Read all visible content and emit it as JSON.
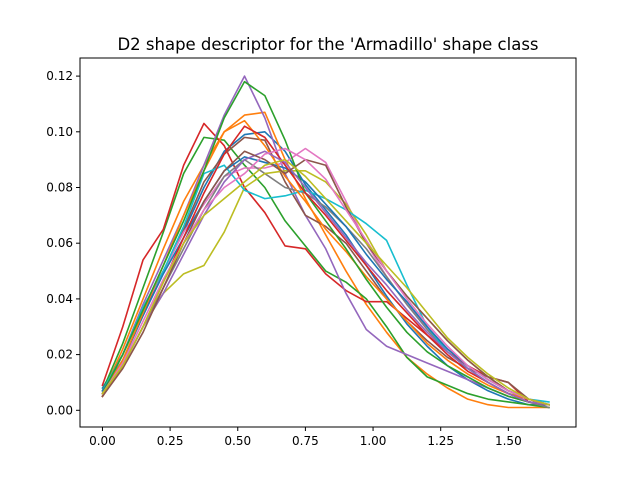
{
  "chart_data": {
    "type": "line",
    "title": "D2 shape descriptor for the 'Armadillo' shape class",
    "xlabel": "",
    "ylabel": "",
    "xlim": [
      -0.083,
      1.75
    ],
    "ylim": [
      -0.006,
      0.1265
    ],
    "x_ticks": [
      0.0,
      0.25,
      0.5,
      0.75,
      1.0,
      1.25,
      1.5
    ],
    "x_tick_labels": [
      "0.00",
      "0.25",
      "0.50",
      "0.75",
      "1.00",
      "1.25",
      "1.50"
    ],
    "y_ticks": [
      0.0,
      0.02,
      0.04,
      0.06,
      0.08,
      0.1,
      0.12
    ],
    "y_tick_labels": [
      "0.00",
      "0.02",
      "0.04",
      "0.06",
      "0.08",
      "0.10",
      "0.12"
    ],
    "grid": false,
    "legend": "none",
    "x": [
      0.0,
      0.075,
      0.15,
      0.225,
      0.3,
      0.375,
      0.45,
      0.525,
      0.6,
      0.675,
      0.75,
      0.825,
      0.9,
      0.975,
      1.05,
      1.125,
      1.2,
      1.275,
      1.35,
      1.425,
      1.5,
      1.575,
      1.65
    ],
    "series": [
      {
        "color": "#1f77b4",
        "values": [
          0.008,
          0.02,
          0.036,
          0.05,
          0.064,
          0.08,
          0.093,
          0.099,
          0.1,
          0.093,
          0.081,
          0.072,
          0.063,
          0.052,
          0.041,
          0.031,
          0.023,
          0.016,
          0.011,
          0.007,
          0.004,
          0.002,
          0.002
        ]
      },
      {
        "color": "#ff7f0e",
        "values": [
          0.006,
          0.022,
          0.04,
          0.058,
          0.075,
          0.088,
          0.1,
          0.106,
          0.107,
          0.09,
          0.076,
          0.063,
          0.05,
          0.038,
          0.028,
          0.019,
          0.013,
          0.008,
          0.004,
          0.002,
          0.001,
          0.001,
          0.001
        ]
      },
      {
        "color": "#2ca02c",
        "values": [
          0.007,
          0.024,
          0.044,
          0.064,
          0.085,
          0.098,
          0.097,
          0.088,
          0.08,
          0.068,
          0.059,
          0.05,
          0.046,
          0.04,
          0.03,
          0.019,
          0.012,
          0.009,
          0.006,
          0.004,
          0.003,
          0.002,
          0.001
        ]
      },
      {
        "color": "#d62728",
        "values": [
          0.009,
          0.03,
          0.054,
          0.065,
          0.088,
          0.103,
          0.095,
          0.08,
          0.071,
          0.059,
          0.058,
          0.049,
          0.043,
          0.039,
          0.039,
          0.033,
          0.027,
          0.021,
          0.016,
          0.012,
          0.01,
          0.003,
          0.002
        ]
      },
      {
        "color": "#9467bd",
        "values": [
          0.006,
          0.02,
          0.038,
          0.054,
          0.07,
          0.088,
          0.106,
          0.12,
          0.105,
          0.085,
          0.07,
          0.058,
          0.042,
          0.029,
          0.023,
          0.02,
          0.017,
          0.014,
          0.011,
          0.008,
          0.005,
          0.003,
          0.002
        ]
      },
      {
        "color": "#8c564b",
        "values": [
          0.006,
          0.018,
          0.034,
          0.05,
          0.065,
          0.082,
          0.092,
          0.098,
          0.097,
          0.082,
          0.07,
          0.066,
          0.06,
          0.05,
          0.04,
          0.032,
          0.025,
          0.019,
          0.015,
          0.012,
          0.01,
          0.004,
          0.002
        ]
      },
      {
        "color": "#e377c2",
        "values": [
          0.006,
          0.02,
          0.036,
          0.05,
          0.064,
          0.074,
          0.084,
          0.087,
          0.087,
          0.089,
          0.094,
          0.089,
          0.075,
          0.06,
          0.048,
          0.038,
          0.03,
          0.022,
          0.016,
          0.011,
          0.007,
          0.004,
          0.002
        ]
      },
      {
        "color": "#7f7f7f",
        "values": [
          0.005,
          0.016,
          0.03,
          0.044,
          0.058,
          0.072,
          0.084,
          0.09,
          0.085,
          0.08,
          0.078,
          0.073,
          0.066,
          0.058,
          0.048,
          0.038,
          0.029,
          0.021,
          0.015,
          0.01,
          0.006,
          0.003,
          0.001
        ]
      },
      {
        "color": "#bcbd22",
        "values": [
          0.005,
          0.016,
          0.03,
          0.042,
          0.049,
          0.052,
          0.064,
          0.08,
          0.085,
          0.086,
          0.086,
          0.082,
          0.074,
          0.063,
          0.05,
          0.041,
          0.033,
          0.025,
          0.018,
          0.012,
          0.007,
          0.004,
          0.002
        ]
      },
      {
        "color": "#17becf",
        "values": [
          0.007,
          0.02,
          0.037,
          0.05,
          0.066,
          0.085,
          0.088,
          0.079,
          0.076,
          0.077,
          0.079,
          0.076,
          0.072,
          0.067,
          0.061,
          0.045,
          0.03,
          0.021,
          0.015,
          0.01,
          0.006,
          0.004,
          0.003
        ]
      },
      {
        "color": "#1f77b4",
        "values": [
          0.007,
          0.018,
          0.034,
          0.049,
          0.062,
          0.075,
          0.086,
          0.091,
          0.089,
          0.087,
          0.082,
          0.074,
          0.066,
          0.056,
          0.047,
          0.039,
          0.03,
          0.022,
          0.016,
          0.011,
          0.007,
          0.004,
          0.002
        ]
      },
      {
        "color": "#ff7f0e",
        "values": [
          0.006,
          0.018,
          0.035,
          0.052,
          0.07,
          0.086,
          0.1,
          0.104,
          0.095,
          0.084,
          0.075,
          0.065,
          0.057,
          0.048,
          0.04,
          0.032,
          0.024,
          0.018,
          0.013,
          0.009,
          0.006,
          0.004,
          0.002
        ]
      },
      {
        "color": "#2ca02c",
        "values": [
          0.006,
          0.02,
          0.036,
          0.052,
          0.068,
          0.086,
          0.105,
          0.118,
          0.113,
          0.097,
          0.078,
          0.068,
          0.058,
          0.047,
          0.037,
          0.028,
          0.021,
          0.016,
          0.012,
          0.008,
          0.005,
          0.003,
          0.002
        ]
      },
      {
        "color": "#d62728",
        "values": [
          0.005,
          0.016,
          0.03,
          0.046,
          0.062,
          0.078,
          0.092,
          0.102,
          0.098,
          0.088,
          0.078,
          0.07,
          0.061,
          0.052,
          0.043,
          0.035,
          0.027,
          0.02,
          0.014,
          0.01,
          0.006,
          0.003,
          0.002
        ]
      },
      {
        "color": "#9467bd",
        "values": [
          0.006,
          0.016,
          0.03,
          0.042,
          0.056,
          0.07,
          0.082,
          0.09,
          0.093,
          0.089,
          0.08,
          0.071,
          0.062,
          0.053,
          0.045,
          0.036,
          0.028,
          0.021,
          0.015,
          0.01,
          0.006,
          0.003,
          0.002
        ]
      },
      {
        "color": "#8c564b",
        "values": [
          0.005,
          0.015,
          0.028,
          0.044,
          0.06,
          0.075,
          0.086,
          0.093,
          0.09,
          0.085,
          0.09,
          0.088,
          0.073,
          0.06,
          0.05,
          0.041,
          0.033,
          0.025,
          0.018,
          0.012,
          0.007,
          0.004,
          0.002
        ]
      },
      {
        "color": "#e377c2",
        "values": [
          0.006,
          0.017,
          0.032,
          0.047,
          0.06,
          0.072,
          0.08,
          0.085,
          0.092,
          0.094,
          0.09,
          0.083,
          0.072,
          0.061,
          0.05,
          0.04,
          0.031,
          0.023,
          0.016,
          0.011,
          0.007,
          0.004,
          0.002
        ]
      },
      {
        "color": "#bcbd22",
        "values": [
          0.006,
          0.016,
          0.03,
          0.046,
          0.06,
          0.07,
          0.076,
          0.082,
          0.088,
          0.09,
          0.084,
          0.076,
          0.068,
          0.06,
          0.052,
          0.044,
          0.035,
          0.026,
          0.019,
          0.013,
          0.008,
          0.004,
          0.002
        ]
      }
    ]
  }
}
